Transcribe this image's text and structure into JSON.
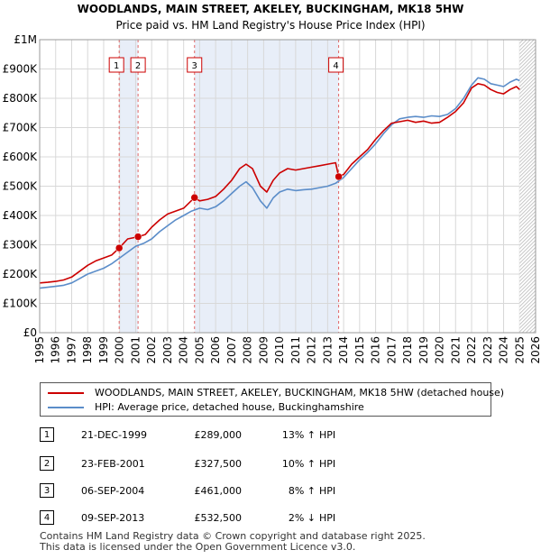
{
  "chart_data": {
    "type": "line",
    "title": "WOODLANDS, MAIN STREET, AKELEY, BUCKINGHAM, MK18 5HW",
    "subtitle": "Price paid vs. HM Land Registry's House Price Index (HPI)",
    "xlim": [
      1995,
      2026
    ],
    "ylim": [
      0,
      1000000
    ],
    "x_ticks": [
      "1995",
      "1996",
      "1997",
      "1998",
      "1999",
      "2000",
      "2001",
      "2002",
      "2003",
      "2004",
      "2005",
      "2006",
      "2007",
      "2008",
      "2009",
      "2010",
      "2011",
      "2012",
      "2013",
      "2014",
      "2015",
      "2016",
      "2017",
      "2018",
      "2019",
      "2020",
      "2021",
      "2022",
      "2023",
      "2024",
      "2025",
      "2026"
    ],
    "y_ticks": [
      {
        "value": 0,
        "label": "£0"
      },
      {
        "value": 100000,
        "label": "£100K"
      },
      {
        "value": 200000,
        "label": "£200K"
      },
      {
        "value": 300000,
        "label": "£300K"
      },
      {
        "value": 400000,
        "label": "£400K"
      },
      {
        "value": 500000,
        "label": "£500K"
      },
      {
        "value": 600000,
        "label": "£600K"
      },
      {
        "value": 700000,
        "label": "£700K"
      },
      {
        "value": 800000,
        "label": "£800K"
      },
      {
        "value": 900000,
        "label": "£900K"
      },
      {
        "value": 1000000,
        "label": "£1M"
      }
    ],
    "series": [
      {
        "name": "WOODLANDS, MAIN STREET, AKELEY, BUCKINGHAM, MK18 5HW (detached house)",
        "color": "#cc0000",
        "x": [
          1995.0,
          1995.5,
          1996.0,
          1996.5,
          1997.0,
          1997.5,
          1998.0,
          1998.5,
          1999.0,
          1999.5,
          1999.97,
          2000.5,
          2001.15,
          2001.6,
          2002.0,
          2002.5,
          2003.0,
          2003.5,
          2004.0,
          2004.68,
          2005.0,
          2005.5,
          2006.0,
          2006.5,
          2007.0,
          2007.5,
          2007.9,
          2008.3,
          2008.8,
          2009.2,
          2009.6,
          2010.0,
          2010.5,
          2011.0,
          2011.5,
          2012.0,
          2012.5,
          2013.0,
          2013.5,
          2013.69,
          2014.0,
          2014.5,
          2015.0,
          2015.5,
          2016.0,
          2016.5,
          2017.0,
          2017.5,
          2018.0,
          2018.5,
          2019.0,
          2019.5,
          2020.0,
          2020.5,
          2021.0,
          2021.5,
          2022.0,
          2022.4,
          2022.8,
          2023.2,
          2023.6,
          2024.0,
          2024.4,
          2024.8,
          2025.0
        ],
        "y": [
          170000,
          172000,
          175000,
          180000,
          190000,
          210000,
          230000,
          245000,
          255000,
          265000,
          289000,
          320000,
          327500,
          335000,
          360000,
          385000,
          405000,
          415000,
          425000,
          461000,
          450000,
          455000,
          465000,
          490000,
          520000,
          560000,
          575000,
          560000,
          500000,
          480000,
          520000,
          545000,
          560000,
          555000,
          560000,
          565000,
          570000,
          575000,
          580000,
          532500,
          540000,
          575000,
          600000,
          625000,
          660000,
          690000,
          715000,
          720000,
          725000,
          718000,
          722000,
          715000,
          718000,
          735000,
          755000,
          785000,
          835000,
          850000,
          845000,
          830000,
          820000,
          815000,
          830000,
          840000,
          830000
        ]
      },
      {
        "name": "HPI: Average price, detached house, Buckinghamshire",
        "color": "#5b8dc9",
        "x": [
          1995.0,
          1995.5,
          1996.0,
          1996.5,
          1997.0,
          1997.5,
          1998.0,
          1998.5,
          1999.0,
          1999.5,
          2000.0,
          2000.5,
          2001.0,
          2001.5,
          2002.0,
          2002.5,
          2003.0,
          2003.5,
          2004.0,
          2004.5,
          2005.0,
          2005.5,
          2006.0,
          2006.5,
          2007.0,
          2007.5,
          2007.9,
          2008.3,
          2008.8,
          2009.2,
          2009.6,
          2010.0,
          2010.5,
          2011.0,
          2011.5,
          2012.0,
          2012.5,
          2013.0,
          2013.5,
          2014.0,
          2014.5,
          2015.0,
          2015.5,
          2016.0,
          2016.5,
          2017.0,
          2017.5,
          2018.0,
          2018.5,
          2019.0,
          2019.5,
          2020.0,
          2020.5,
          2021.0,
          2021.5,
          2022.0,
          2022.4,
          2022.8,
          2023.2,
          2023.6,
          2024.0,
          2024.4,
          2024.8,
          2025.0
        ],
        "y": [
          152000,
          155000,
          158000,
          162000,
          170000,
          185000,
          200000,
          210000,
          220000,
          235000,
          255000,
          275000,
          295000,
          305000,
          320000,
          345000,
          365000,
          385000,
          400000,
          415000,
          425000,
          420000,
          430000,
          450000,
          475000,
          500000,
          515000,
          495000,
          450000,
          425000,
          460000,
          480000,
          490000,
          485000,
          488000,
          490000,
          495000,
          500000,
          510000,
          530000,
          560000,
          590000,
          615000,
          645000,
          680000,
          710000,
          730000,
          735000,
          738000,
          735000,
          740000,
          738000,
          745000,
          765000,
          800000,
          845000,
          870000,
          865000,
          850000,
          845000,
          840000,
          855000,
          865000,
          860000
        ]
      }
    ],
    "sales": [
      {
        "label": "1",
        "x": 1999.97,
        "y": 289000
      },
      {
        "label": "2",
        "x": 2001.15,
        "y": 327500
      },
      {
        "label": "3",
        "x": 2004.68,
        "y": 461000
      },
      {
        "label": "4",
        "x": 2013.69,
        "y": 532500
      }
    ],
    "shaded_periods": [
      [
        1999.97,
        2001.15
      ],
      [
        2004.68,
        2013.69
      ]
    ],
    "future_from": 2025.0
  },
  "legend": {
    "red_label": "WOODLANDS, MAIN STREET, AKELEY, BUCKINGHAM, MK18 5HW (detached house)",
    "blue_label": "HPI: Average price, detached house, Buckinghamshire"
  },
  "transactions": [
    {
      "num": "1",
      "date": "21-DEC-1999",
      "price": "£289,000",
      "pct": "13% ↑",
      "hpi": "HPI"
    },
    {
      "num": "2",
      "date": "23-FEB-2001",
      "price": "£327,500",
      "pct": "10% ↑",
      "hpi": "HPI"
    },
    {
      "num": "3",
      "date": "06-SEP-2004",
      "price": "£461,000",
      "pct": "8% ↑",
      "hpi": "HPI"
    },
    {
      "num": "4",
      "date": "09-SEP-2013",
      "price": "£532,500",
      "pct": "2% ↓",
      "hpi": "HPI"
    }
  ],
  "footer": {
    "line1": "Contains HM Land Registry data © Crown copyright and database right 2025.",
    "line2": "This data is licensed under the Open Government Licence v3.0."
  }
}
